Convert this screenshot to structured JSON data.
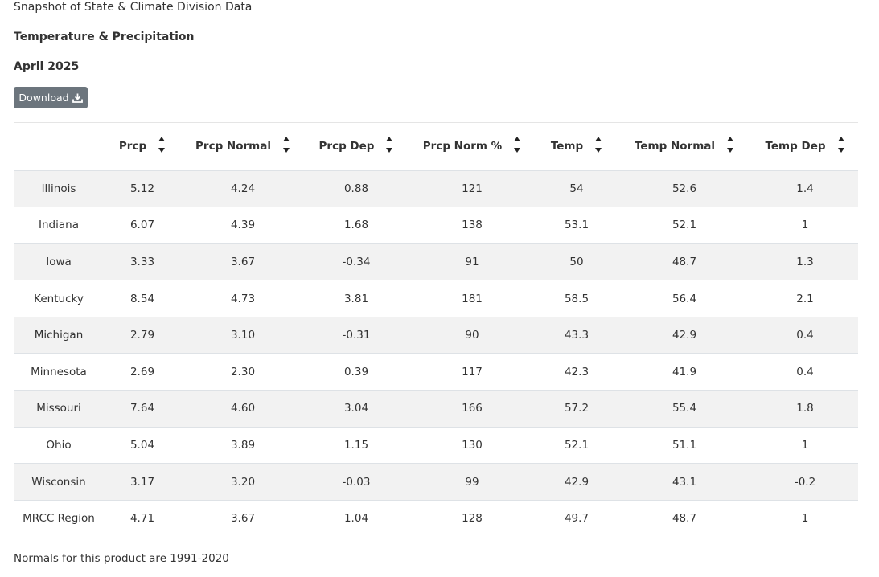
{
  "header": {
    "title": "Snapshot of State & Climate Division Data",
    "subtitle": "Temperature & Precipitation",
    "period": "April 2025",
    "download_label": "Download"
  },
  "table": {
    "columns": [
      "",
      "Prcp",
      "Prcp Normal",
      "Prcp Dep",
      "Prcp Norm %",
      "Temp",
      "Temp Normal",
      "Temp Dep"
    ],
    "rows": [
      [
        "Illinois",
        "5.12",
        "4.24",
        "0.88",
        "121",
        "54",
        "52.6",
        "1.4"
      ],
      [
        "Indiana",
        "6.07",
        "4.39",
        "1.68",
        "138",
        "53.1",
        "52.1",
        "1"
      ],
      [
        "Iowa",
        "3.33",
        "3.67",
        "-0.34",
        "91",
        "50",
        "48.7",
        "1.3"
      ],
      [
        "Kentucky",
        "8.54",
        "4.73",
        "3.81",
        "181",
        "58.5",
        "56.4",
        "2.1"
      ],
      [
        "Michigan",
        "2.79",
        "3.10",
        "-0.31",
        "90",
        "43.3",
        "42.9",
        "0.4"
      ],
      [
        "Minnesota",
        "2.69",
        "2.30",
        "0.39",
        "117",
        "42.3",
        "41.9",
        "0.4"
      ],
      [
        "Missouri",
        "7.64",
        "4.60",
        "3.04",
        "166",
        "57.2",
        "55.4",
        "1.8"
      ],
      [
        "Ohio",
        "5.04",
        "3.89",
        "1.15",
        "130",
        "52.1",
        "51.1",
        "1"
      ],
      [
        "Wisconsin",
        "3.17",
        "3.20",
        "-0.03",
        "99",
        "42.9",
        "43.1",
        "-0.2"
      ],
      [
        "MRCC Region",
        "4.71",
        "3.67",
        "1.04",
        "128",
        "49.7",
        "48.7",
        "1"
      ]
    ]
  },
  "icons": {
    "download": "download-icon",
    "sort": "sort-icon"
  },
  "footnote": "Normals for this product are 1991-2020",
  "colors": {
    "button_bg": "#6c757d",
    "row_stripe": "#f2f2f2",
    "text": "#333333"
  }
}
